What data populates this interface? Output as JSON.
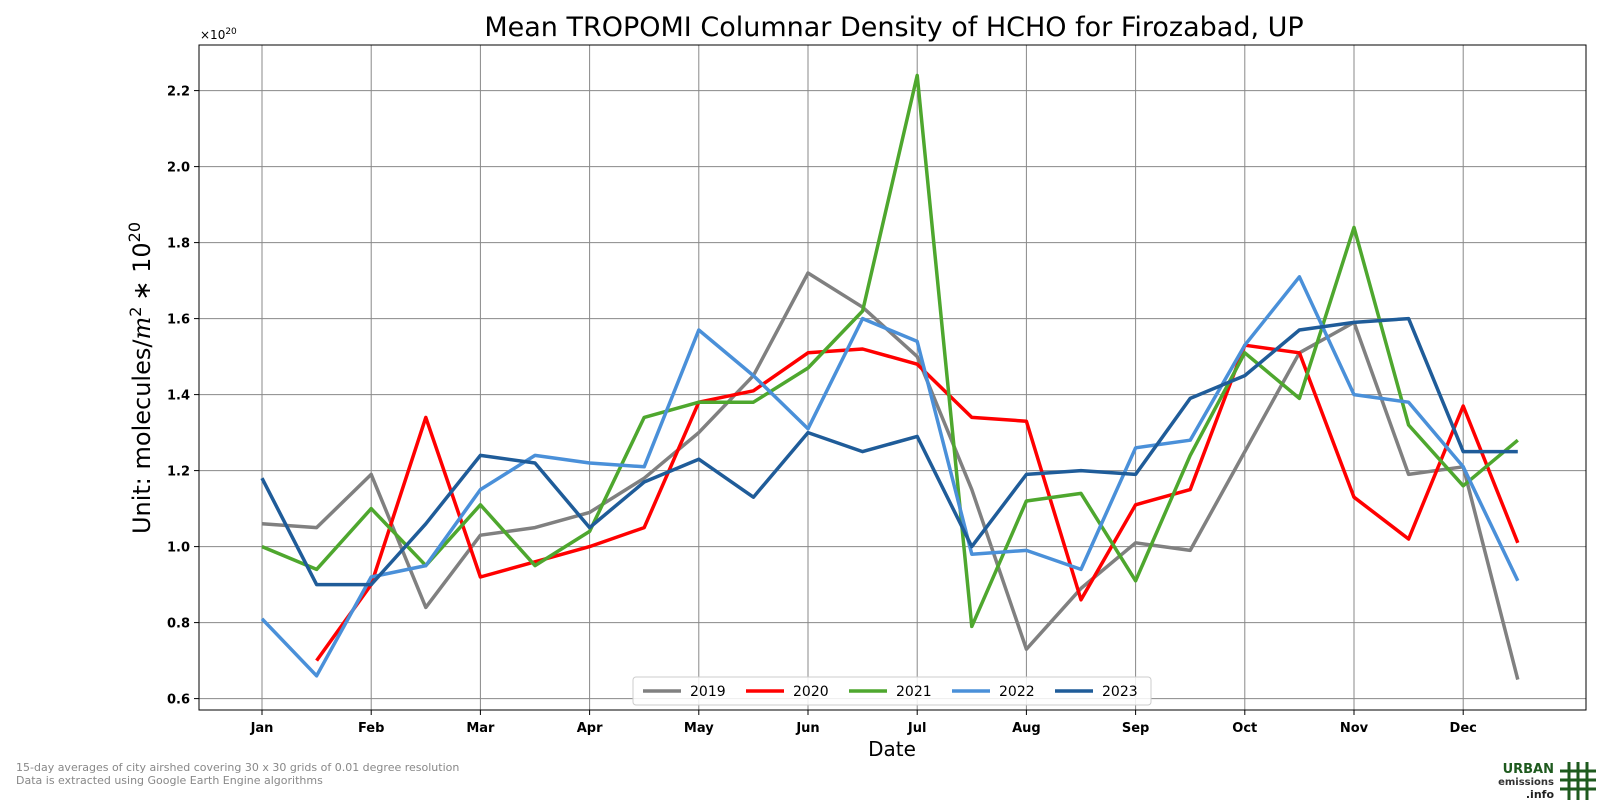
{
  "chart_data": {
    "type": "line",
    "title": "Mean TROPOMI Columnar Density of HCHO for Firozabad, UP",
    "xlabel": "Date",
    "ylabel_text": "Unit: molecules/",
    "ylabel_m": "m",
    "ylabel_exp2": "2",
    "ylabel_times": "∗ 10",
    "ylabel_exp20": "20",
    "offset_base": "×10",
    "offset_exp": "20",
    "x": [
      "Jan",
      "Jan-15",
      "Feb",
      "Feb-15",
      "Mar",
      "Mar-15",
      "Apr",
      "Apr-15",
      "May",
      "May-15",
      "Jun",
      "Jun-15",
      "Jul",
      "Jul-15",
      "Aug",
      "Aug-15",
      "Sep",
      "Sep-15",
      "Oct",
      "Oct-15",
      "Nov",
      "Nov-15",
      "Dec",
      "Dec-15"
    ],
    "xtick_labels": [
      "Jan",
      "Feb",
      "Mar",
      "Apr",
      "May",
      "Jun",
      "Jul",
      "Aug",
      "Sep",
      "Oct",
      "Nov",
      "Dec"
    ],
    "ylim": [
      0.57,
      2.32
    ],
    "yticks": [
      "0.6",
      "0.8",
      "1.0",
      "1.2",
      "1.4",
      "1.6",
      "1.8",
      "2.0",
      "2.2"
    ],
    "grid": true,
    "legend_position": "bottom-center",
    "series": [
      {
        "name": "2019",
        "color": "#808080",
        "values": [
          1.06,
          1.05,
          1.19,
          0.84,
          1.03,
          1.05,
          1.09,
          1.18,
          1.3,
          1.45,
          1.72,
          1.63,
          1.5,
          1.15,
          0.73,
          0.89,
          1.01,
          0.99,
          1.25,
          1.51,
          1.59,
          1.19,
          1.21,
          0.65
        ]
      },
      {
        "name": "2020",
        "color": "#ff0000",
        "values": [
          null,
          0.7,
          0.9,
          1.34,
          0.92,
          0.96,
          1.0,
          1.05,
          1.38,
          1.41,
          1.51,
          1.52,
          1.48,
          1.34,
          1.33,
          0.86,
          1.11,
          1.15,
          1.53,
          1.51,
          1.13,
          1.02,
          1.37,
          1.01
        ]
      },
      {
        "name": "2021",
        "color": "#4ea72e",
        "values": [
          1.0,
          0.94,
          1.1,
          0.95,
          1.11,
          0.95,
          1.04,
          1.34,
          1.38,
          1.38,
          1.47,
          1.62,
          2.24,
          0.79,
          1.12,
          1.14,
          0.91,
          1.24,
          1.51,
          1.39,
          1.84,
          1.32,
          1.16,
          1.28
        ]
      },
      {
        "name": "2022",
        "color": "#4a90d9",
        "values": [
          0.81,
          0.66,
          0.92,
          0.95,
          1.15,
          1.24,
          1.22,
          1.21,
          1.57,
          1.45,
          1.31,
          1.6,
          1.54,
          0.98,
          0.99,
          0.94,
          1.26,
          1.28,
          1.53,
          1.71,
          1.4,
          1.38,
          1.21,
          0.91
        ]
      },
      {
        "name": "2023",
        "color": "#1f5c99",
        "values": [
          1.18,
          0.9,
          0.9,
          1.06,
          1.24,
          1.22,
          1.05,
          1.17,
          1.23,
          1.13,
          1.3,
          1.25,
          1.29,
          1.0,
          1.19,
          1.2,
          1.19,
          1.39,
          1.45,
          1.57,
          1.59,
          1.6,
          1.25,
          1.25
        ]
      }
    ]
  },
  "footnotes": {
    "line1": "15-day averages of city airshed covering 30 x 30 grids of 0.01 degree resolution",
    "line2": "Data is extracted using Google Earth Engine algorithms"
  },
  "logo": {
    "name": "urban-emissions-info-logo",
    "word1": "URBAN",
    "word2": "emissions",
    "word3": ".info",
    "color": "#1e5a1e"
  }
}
